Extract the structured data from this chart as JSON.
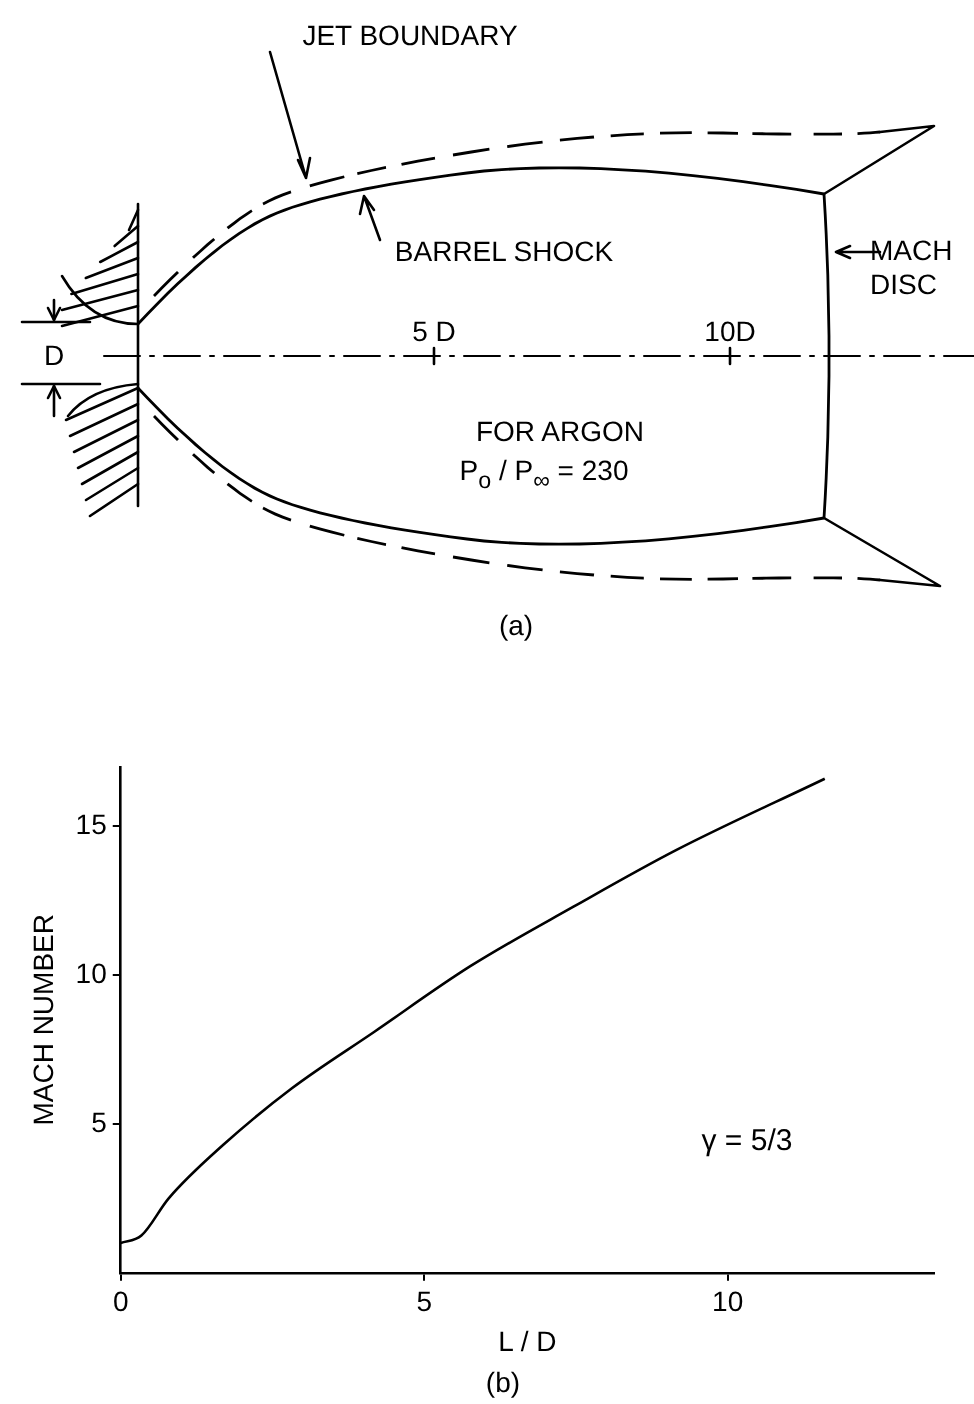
{
  "chart_data": [
    {
      "type": "other",
      "annotations": [
        "JET BOUNDARY",
        "BARREL SHOCK",
        "MACH DISC",
        "D",
        "5 D",
        "10D",
        "FOR ARGON",
        "P$_{o}$ / P$_{∞}$ = 230",
        "(a)"
      ]
    },
    {
      "type": "line",
      "xlabel": "L / D",
      "ylabel": "MACH NUMBER",
      "annotations": [
        "γ = 5/3",
        "(b)"
      ],
      "x": [
        0,
        0.34,
        0.79,
        1.69,
        2.82,
        4.18,
        5.76,
        7.46,
        9.15,
        11.6
      ],
      "series": [
        {
          "color": "#000000",
          "values": [
            1.0,
            1.25,
            2.5,
            4.3,
            6.2,
            8.1,
            10.3,
            12.3,
            14.2,
            16.6
          ]
        }
      ],
      "xlim": [
        0,
        13.4
      ],
      "xticks": [
        0,
        5,
        10
      ],
      "ylim": [
        0,
        17
      ],
      "yticks": [
        5,
        10,
        15
      ],
      "grid": false,
      "legend": false,
      "marker": "none",
      "line_style": "solid"
    }
  ]
}
